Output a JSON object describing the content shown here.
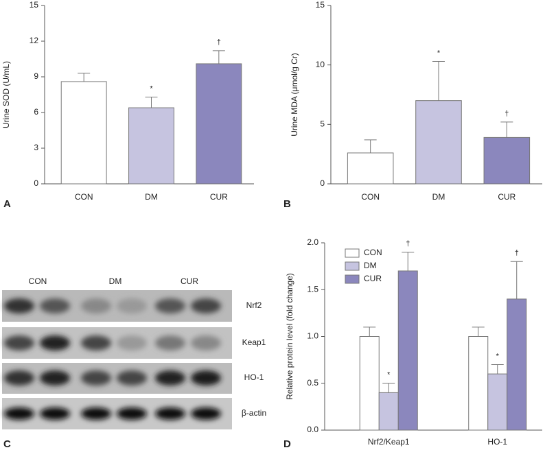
{
  "chart_data": [
    {
      "type": "bar",
      "panel": "A",
      "ylabel": "Urine SOD (U/mL)",
      "categories": [
        "CON",
        "DM",
        "CUR"
      ],
      "values": [
        8.6,
        6.4,
        10.1
      ],
      "errors": [
        0.7,
        0.9,
        1.1
      ],
      "markers": [
        null,
        "*",
        "†"
      ],
      "colors": [
        "#ffffff",
        "#c6c4e0",
        "#8b87bd"
      ],
      "ylim": [
        0,
        15
      ],
      "yticks": [
        0,
        3,
        6,
        9,
        12,
        15
      ]
    },
    {
      "type": "bar",
      "panel": "B",
      "ylabel": "Urine MDA (μmol/g Cr)",
      "categories": [
        "CON",
        "DM",
        "CUR"
      ],
      "values": [
        2.6,
        7.0,
        3.9
      ],
      "errors": [
        1.1,
        3.3,
        1.3
      ],
      "markers": [
        null,
        "*",
        "†"
      ],
      "colors": [
        "#ffffff",
        "#c6c4e0",
        "#8b87bd"
      ],
      "ylim": [
        0,
        15
      ],
      "yticks": [
        0,
        5,
        10,
        15
      ]
    },
    {
      "type": "grouped-bar",
      "panel": "D",
      "ylabel": "Relative protein level (fold change)",
      "categories": [
        "Nrf2/Keap1",
        "HO-1"
      ],
      "series": [
        {
          "name": "CON",
          "color": "#ffffff",
          "values": [
            1.0,
            1.0
          ],
          "errors": [
            0.1,
            0.1
          ],
          "markers": [
            null,
            null
          ]
        },
        {
          "name": "DM",
          "color": "#c6c4e0",
          "values": [
            0.4,
            0.6
          ],
          "errors": [
            0.1,
            0.1
          ],
          "markers": [
            "*",
            "*"
          ]
        },
        {
          "name": "CUR",
          "color": "#8b87bd",
          "values": [
            1.7,
            1.4
          ],
          "errors": [
            0.2,
            0.4
          ],
          "markers": [
            "†",
            "†"
          ]
        }
      ],
      "ylim": [
        0,
        2
      ],
      "yticks": [
        {
          "value": 0,
          "label": "0.0"
        },
        0.5,
        {
          "value": 1,
          "label": "1.0"
        },
        1.5,
        {
          "value": 2,
          "label": "2.0"
        }
      ],
      "legend": "top-left"
    }
  ],
  "blot": {
    "panel": "C",
    "groups": [
      "CON",
      "DM",
      "CUR"
    ],
    "rows": [
      "Nrf2",
      "Keap1",
      "HO-1",
      "β-actin"
    ]
  }
}
